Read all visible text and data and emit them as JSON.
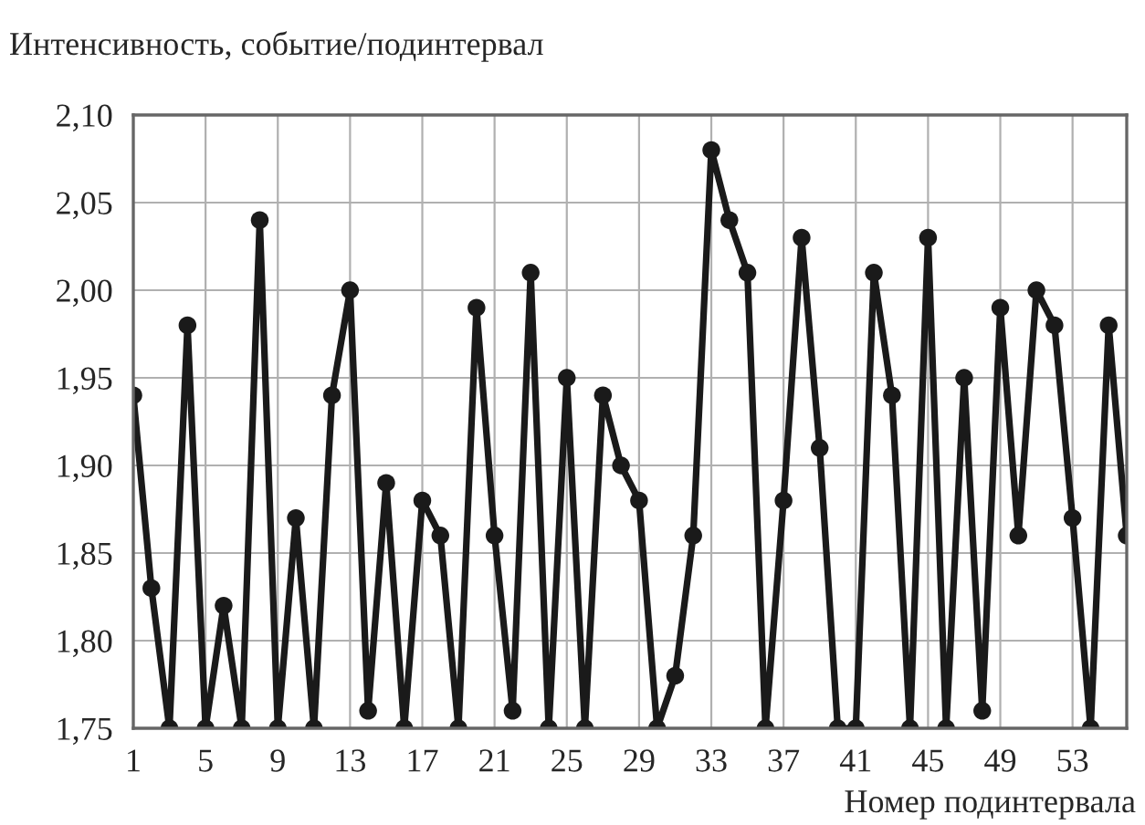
{
  "chart_data": {
    "type": "line",
    "ylabel": "Интенсивность, событие/подинтервал",
    "xlabel": "Номер подинтервала",
    "x": [
      1,
      2,
      3,
      4,
      5,
      6,
      7,
      8,
      9,
      10,
      11,
      12,
      13,
      14,
      15,
      16,
      17,
      18,
      19,
      20,
      21,
      22,
      23,
      24,
      25,
      26,
      27,
      28,
      29,
      30,
      31,
      32,
      33,
      34,
      35,
      36,
      37,
      38,
      39,
      40,
      41,
      42,
      43,
      44,
      45,
      46,
      47,
      48,
      49,
      50,
      51,
      52,
      53,
      54,
      55,
      56
    ],
    "series": [
      {
        "color": "#1a1a1a",
        "values": [
          1.94,
          1.83,
          1.75,
          1.98,
          1.75,
          1.82,
          1.75,
          2.04,
          1.75,
          1.87,
          1.75,
          1.94,
          2.0,
          1.76,
          1.89,
          1.75,
          1.88,
          1.86,
          1.75,
          1.99,
          1.86,
          1.76,
          2.01,
          1.75,
          1.95,
          1.75,
          1.94,
          1.9,
          1.88,
          1.75,
          1.78,
          1.86,
          2.08,
          2.04,
          2.01,
          1.75,
          1.88,
          2.03,
          1.91,
          1.75,
          1.75,
          2.01,
          1.94,
          1.75,
          2.03,
          1.75,
          1.95,
          1.76,
          1.99,
          1.86,
          2.0,
          1.98,
          1.87,
          1.75,
          1.98,
          1.86
        ]
      }
    ],
    "xlim": [
      1,
      56
    ],
    "xticks": [
      1,
      5,
      9,
      13,
      17,
      21,
      25,
      29,
      33,
      37,
      41,
      45,
      49,
      53
    ],
    "ylim": [
      1.75,
      2.1
    ],
    "yticks": [
      {
        "value": 1.75,
        "label": "1,75"
      },
      {
        "value": 1.8,
        "label": "1,80"
      },
      {
        "value": 1.85,
        "label": "1,85"
      },
      {
        "value": 1.9,
        "label": "1,90"
      },
      {
        "value": 1.95,
        "label": "1,95"
      },
      {
        "value": 2.0,
        "label": "2,00"
      },
      {
        "value": 2.05,
        "label": "2,05"
      },
      {
        "value": 2.1,
        "label": "2,10"
      }
    ],
    "grid": true,
    "marker": "circle",
    "line_style": "solid"
  }
}
